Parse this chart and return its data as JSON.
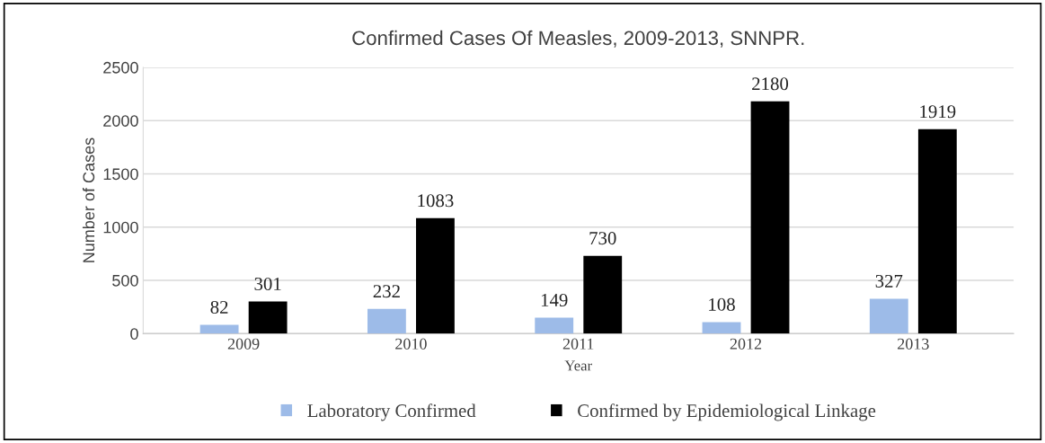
{
  "chart_data": {
    "type": "bar",
    "title": "Confirmed Cases Of Measles, 2009-2013, SNNPR.",
    "xlabel": "Year",
    "ylabel": "Number of Cases",
    "categories": [
      "2009",
      "2010",
      "2011",
      "2012",
      "2013"
    ],
    "series": [
      {
        "name": "Laboratory Confirmed",
        "color": "#9dbbe8",
        "values": [
          82,
          232,
          149,
          108,
          327
        ]
      },
      {
        "name": "Confirmed by Epidemiological Linkage",
        "color": "#000000",
        "values": [
          301,
          1083,
          730,
          2180,
          1919
        ]
      }
    ],
    "ylim": [
      0,
      2500
    ],
    "yticks": [
      0,
      500,
      1000,
      1500,
      2000,
      2500
    ],
    "grid": "y",
    "legend": "bottom",
    "data_labels": true
  }
}
